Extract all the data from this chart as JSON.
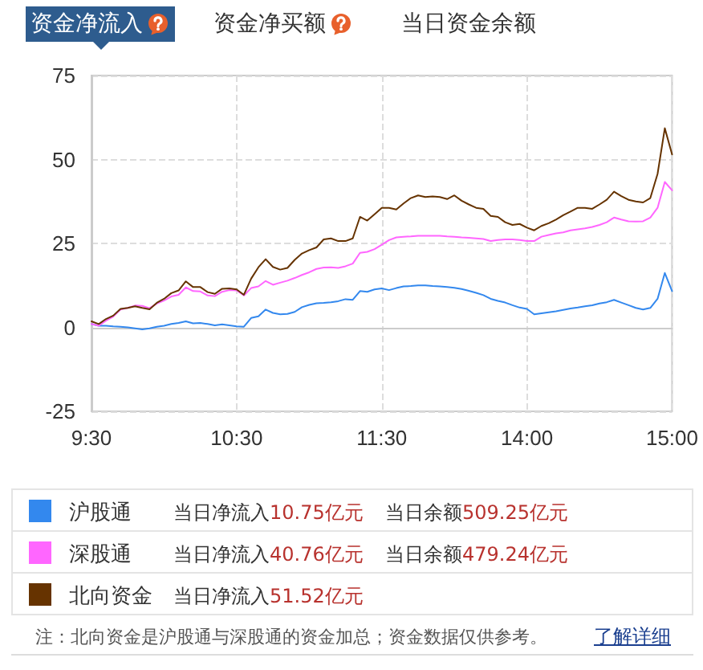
{
  "chart_data": {
    "type": "line",
    "title": "资金净流入",
    "categories": [
      "9:30",
      null,
      null,
      null,
      null,
      null,
      null,
      null,
      null,
      null,
      null,
      null,
      null,
      null,
      null,
      null,
      null,
      null,
      null,
      null,
      "10:30",
      null,
      null,
      null,
      null,
      null,
      null,
      null,
      null,
      null,
      null,
      null,
      null,
      null,
      null,
      null,
      null,
      null,
      null,
      null,
      "11:30",
      null,
      null,
      null,
      null,
      null,
      null,
      null,
      null,
      null,
      null,
      null,
      null,
      null,
      null,
      null,
      null,
      null,
      null,
      null,
      "14:00",
      null,
      null,
      null,
      null,
      null,
      null,
      null,
      null,
      null,
      null,
      null,
      null,
      null,
      null,
      null,
      null,
      null,
      null,
      null,
      "15:00"
    ],
    "ylim": [
      -25,
      75
    ],
    "yticks": [
      -25,
      0,
      25,
      50,
      75
    ],
    "grid": true,
    "legend": "bottom",
    "series": [
      {
        "name": "沪股通",
        "color": "#3388ee",
        "values": [
          1,
          0.5,
          0.5,
          0.3,
          0.2,
          0,
          -0.3,
          -0.6,
          -0.3,
          0.2,
          0.5,
          1,
          1.3,
          1.8,
          1.2,
          1.3,
          1,
          0.6,
          0.9,
          0.6,
          0.3,
          0.2,
          2.8,
          3.3,
          5.3,
          4.3,
          3.9,
          4,
          4.6,
          6,
          6.7,
          7.2,
          7.3,
          7.5,
          7.8,
          8.4,
          8.2,
          10.8,
          10.6,
          11.3,
          11.6,
          11.1,
          11.7,
          12.2,
          12.3,
          12.5,
          12.5,
          12.3,
          12.2,
          12,
          11.8,
          11.4,
          10.9,
          10.3,
          9.6,
          8.5,
          7.9,
          7.4,
          6.6,
          5.9,
          5.5,
          3.9,
          4.2,
          4.5,
          4.8,
          5.2,
          5.6,
          5.9,
          6.3,
          6.6,
          7.1,
          7.5,
          8.2,
          7.4,
          6.6,
          5.8,
          5.3,
          5.8,
          8.5,
          16.2,
          10.8
        ]
      },
      {
        "name": "深股通",
        "color": "#ff66ff",
        "values": [
          1,
          0.5,
          2,
          3.2,
          5.3,
          5.8,
          6.5,
          6.4,
          5.7,
          7.1,
          8,
          9.2,
          9.7,
          11.9,
          10.8,
          10.7,
          9.5,
          9.3,
          10.6,
          11.1,
          11,
          9.5,
          11.7,
          12.2,
          13.8,
          12.7,
          13.3,
          13.9,
          14.7,
          15.6,
          16.4,
          17.4,
          17.8,
          17.9,
          17.7,
          18.2,
          19,
          22.2,
          22.5,
          23.3,
          24.6,
          26,
          26.8,
          27,
          27.1,
          27.3,
          27.3,
          27.3,
          27.3,
          27.1,
          27,
          26.8,
          26.7,
          26.5,
          26.3,
          25.7,
          26,
          26.2,
          26.2,
          26,
          25.7,
          25.7,
          27,
          27.5,
          28,
          28.3,
          28.9,
          29.2,
          29.5,
          29.9,
          30.5,
          31.3,
          32.7,
          32.1,
          31.6,
          31.5,
          31.6,
          32.7,
          35.6,
          43.3,
          40.8
        ]
      },
      {
        "name": "北向资金",
        "color": "#663300",
        "values": [
          1.8,
          1,
          2.5,
          3.5,
          5.5,
          5.8,
          6.3,
          5.8,
          5.4,
          7.3,
          8.5,
          10.2,
          11,
          13.7,
          12,
          12,
          10.5,
          10,
          11.5,
          11.6,
          11.3,
          9.7,
          14.5,
          17.9,
          20.3,
          18,
          17.2,
          17.7,
          20.1,
          22,
          23,
          23.8,
          26.2,
          26.5,
          25.7,
          25.7,
          26.5,
          32.9,
          31.8,
          33.7,
          35.6,
          35.6,
          35.1,
          36.9,
          38.5,
          39.3,
          38.8,
          39,
          38.8,
          38.2,
          39.3,
          37.7,
          36.6,
          35.6,
          35.3,
          33.2,
          32.9,
          31.3,
          30.5,
          30.8,
          29.7,
          28.9,
          30.2,
          31,
          32.1,
          33.4,
          34.5,
          35.6,
          35.6,
          35.3,
          36.6,
          38,
          40.4,
          39.1,
          38,
          37.5,
          37.2,
          38.5,
          45.7,
          59.3,
          51.5
        ]
      }
    ],
    "annotations": [
      "资金净买额",
      "当日资金余额",
      "当日净流入10.75亿元",
      "当日余额509.25亿元",
      "当日净流入40.76亿元",
      "当日余额479.24亿元",
      "当日净流入51.52亿元",
      "注：北向资金是沪股通与深股通的资金加总；资金数据仅供参考。",
      "了解详细"
    ]
  }
}
